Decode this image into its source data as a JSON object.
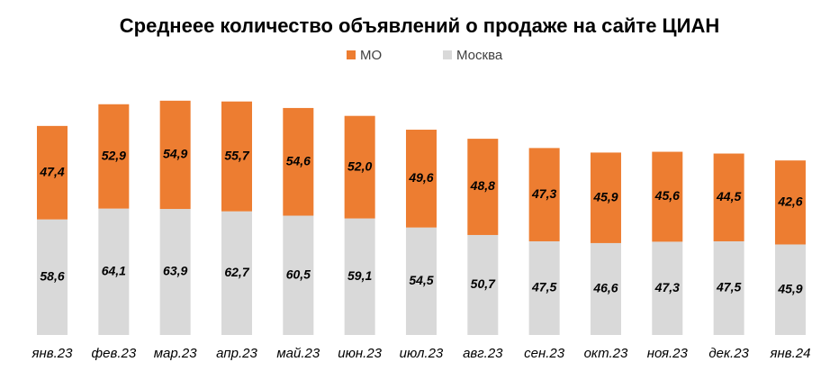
{
  "chart_data": {
    "type": "bar",
    "stacked": true,
    "title": "Среднеее количество объявлений о продаже на сайте ЦИАН",
    "categories": [
      "янв.23",
      "фев.23",
      "мар.23",
      "апр.23",
      "май.23",
      "июн.23",
      "июл.23",
      "авг.23",
      "сен.23",
      "окт.23",
      "ноя.23",
      "дек.23",
      "янв.24"
    ],
    "series": [
      {
        "name": "МО",
        "color": "#ed7d31",
        "values": [
          47.4,
          52.9,
          54.9,
          55.7,
          54.6,
          52.0,
          49.6,
          48.8,
          47.3,
          45.9,
          45.6,
          44.5,
          42.6
        ],
        "value_labels": [
          "47,4",
          "52,9",
          "54,9",
          "55,7",
          "54,6",
          "52,0",
          "49,6",
          "48,8",
          "47,3",
          "45,9",
          "45,6",
          "44,5",
          "42,6"
        ]
      },
      {
        "name": "Москва",
        "color": "#d9d9d9",
        "values": [
          58.6,
          64.1,
          63.9,
          62.7,
          60.5,
          59.1,
          54.5,
          50.7,
          47.5,
          46.6,
          47.3,
          47.5,
          45.9
        ],
        "value_labels": [
          "58,6",
          "64,1",
          "63,9",
          "62,7",
          "60,5",
          "59,1",
          "54,5",
          "50,7",
          "47,5",
          "46,6",
          "47,3",
          "47,5",
          "45,9"
        ]
      }
    ]
  }
}
